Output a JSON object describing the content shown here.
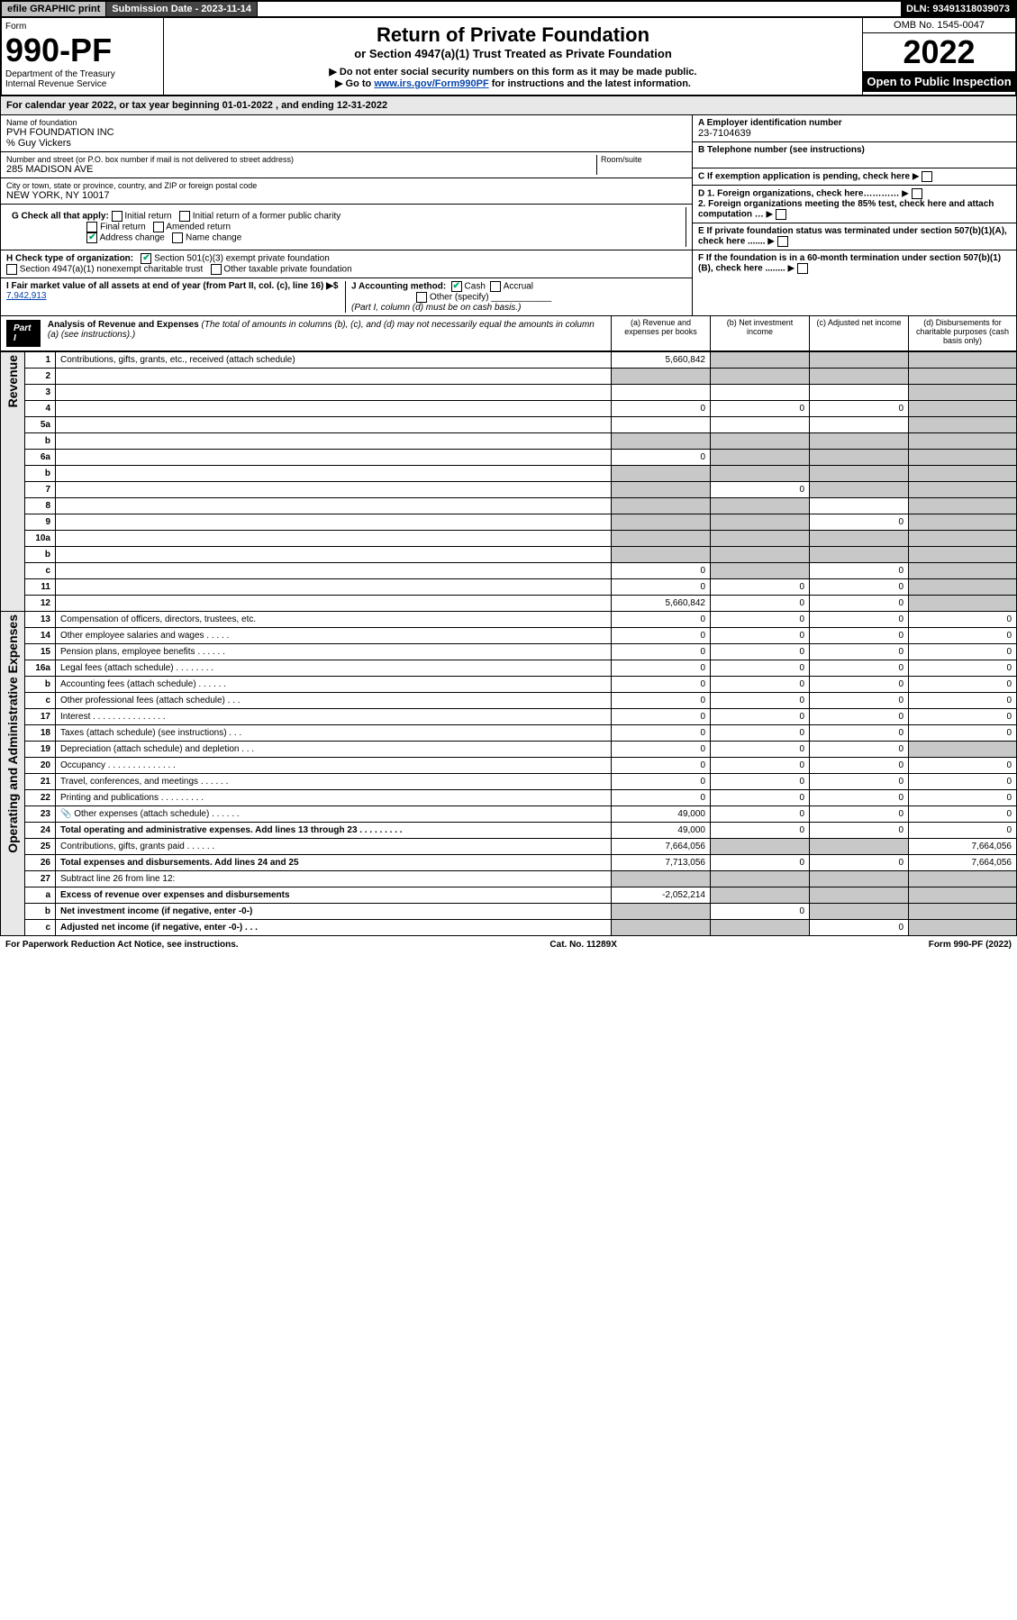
{
  "topbar": {
    "efile": "efile GRAPHIC print",
    "subdate_label": "Submission Date - 2023-11-14",
    "dln": "DLN: 93491318039073"
  },
  "header": {
    "form_label": "Form",
    "form_number": "990-PF",
    "dept": "Department of the Treasury",
    "irs": "Internal Revenue Service",
    "title": "Return of Private Foundation",
    "subtitle": "or Section 4947(a)(1) Trust Treated as Private Foundation",
    "note1": "▶ Do not enter social security numbers on this form as it may be made public.",
    "note2_pre": "▶ Go to ",
    "note2_link": "www.irs.gov/Form990PF",
    "note2_post": " for instructions and the latest information.",
    "omb": "OMB No. 1545-0047",
    "year": "2022",
    "open": "Open to Public Inspection"
  },
  "caldates": {
    "text_pre": "For calendar year 2022, or tax year beginning ",
    "begin": "01-01-2022",
    "text_mid": " , and ending ",
    "end": "12-31-2022"
  },
  "foundation": {
    "name_label": "Name of foundation",
    "name": "PVH FOUNDATION INC",
    "care_of": "% Guy Vickers",
    "addr_label": "Number and street (or P.O. box number if mail is not delivered to street address)",
    "addr": "285 MADISON AVE",
    "room_label": "Room/suite",
    "city_label": "City or town, state or province, country, and ZIP or foreign postal code",
    "city": "NEW YORK, NY  10017",
    "ein_label": "A Employer identification number",
    "ein": "23-7104639",
    "tel_label": "B Telephone number (see instructions)",
    "c_label": "C If exemption application is pending, check here",
    "d1": "D 1. Foreign organizations, check here…………",
    "d2": "2. Foreign organizations meeting the 85% test, check here and attach computation …",
    "e_label": "E If private foundation status was terminated under section 507(b)(1)(A), check here .......",
    "f_label": "F If the foundation is in a 60-month termination under section 507(b)(1)(B), check here ........"
  },
  "g": {
    "label": "G Check all that apply:",
    "initial": "Initial return",
    "initial_former": "Initial return of a former public charity",
    "final": "Final return",
    "amended": "Amended return",
    "address": "Address change",
    "name": "Name change"
  },
  "h": {
    "label": "H Check type of organization:",
    "c3": "Section 501(c)(3) exempt private foundation",
    "trust": "Section 4947(a)(1) nonexempt charitable trust",
    "other": "Other taxable private foundation"
  },
  "i": {
    "label": "I Fair market value of all assets at end of year (from Part II, col. (c), line 16) ▶$",
    "value": "7,942,913"
  },
  "j": {
    "label": "J Accounting method:",
    "cash": "Cash",
    "accrual": "Accrual",
    "other": "Other (specify)",
    "note": "(Part I, column (d) must be on cash basis.)"
  },
  "part1": {
    "tag": "Part I",
    "title": "Analysis of Revenue and Expenses",
    "sub": " (The total of amounts in columns (b), (c), and (d) may not necessarily equal the amounts in column (a) (see instructions).)",
    "col_a": "(a) Revenue and expenses per books",
    "col_b": "(b) Net investment income",
    "col_c": "(c) Adjusted net income",
    "col_d": "(d) Disbursements for charitable purposes (cash basis only)",
    "side_rev": "Revenue",
    "side_exp": "Operating and Administrative Expenses"
  },
  "lines": [
    {
      "n": "1",
      "d": "Contributions, gifts, grants, etc., received (attach schedule)",
      "a": "5,660,842",
      "b": "",
      "c": "",
      "ds": "shade",
      "cs": "shade",
      "bs": "shade"
    },
    {
      "n": "2",
      "d": "",
      "a": "",
      "b": "",
      "c": "",
      "as": "shade",
      "bs": "shade",
      "cs": "shade",
      "ds": "shade"
    },
    {
      "n": "3",
      "d": "",
      "a": "",
      "b": "",
      "c": "",
      "ds": "shade"
    },
    {
      "n": "4",
      "d": "",
      "a": "0",
      "b": "0",
      "c": "0",
      "ds": "shade"
    },
    {
      "n": "5a",
      "d": "",
      "a": "",
      "b": "",
      "c": "",
      "ds": "shade"
    },
    {
      "n": "b",
      "d": "",
      "a": "",
      "b": "",
      "c": "",
      "as": "shade",
      "bs": "shade",
      "cs": "shade",
      "ds": "shade"
    },
    {
      "n": "6a",
      "d": "",
      "a": "0",
      "b": "",
      "c": "",
      "bs": "shade",
      "cs": "shade",
      "ds": "shade"
    },
    {
      "n": "b",
      "d": "",
      "a": "",
      "b": "",
      "c": "",
      "as": "shade",
      "bs": "shade",
      "cs": "shade",
      "ds": "shade"
    },
    {
      "n": "7",
      "d": "",
      "a": "",
      "b": "0",
      "c": "",
      "as": "shade",
      "cs": "shade",
      "ds": "shade"
    },
    {
      "n": "8",
      "d": "",
      "a": "",
      "b": "",
      "c": "",
      "as": "shade",
      "bs": "shade",
      "ds": "shade"
    },
    {
      "n": "9",
      "d": "",
      "a": "",
      "b": "",
      "c": "0",
      "as": "shade",
      "bs": "shade",
      "ds": "shade"
    },
    {
      "n": "10a",
      "d": "",
      "a": "",
      "b": "",
      "c": "",
      "as": "shade",
      "bs": "shade",
      "cs": "shade",
      "ds": "shade"
    },
    {
      "n": "b",
      "d": "",
      "a": "",
      "b": "",
      "c": "",
      "as": "shade",
      "bs": "shade",
      "cs": "shade",
      "ds": "shade"
    },
    {
      "n": "c",
      "d": "",
      "a": "0",
      "b": "",
      "c": "0",
      "bs": "shade",
      "ds": "shade"
    },
    {
      "n": "11",
      "d": "",
      "a": "0",
      "b": "0",
      "c": "0",
      "ds": "shade"
    },
    {
      "n": "12",
      "d": "",
      "a": "5,660,842",
      "b": "0",
      "c": "0",
      "bold": true,
      "ds": "shade"
    },
    {
      "n": "13",
      "d": "Compensation of officers, directors, trustees, etc.",
      "a": "0",
      "b": "0",
      "c": "0",
      "dd": "0"
    },
    {
      "n": "14",
      "d": "Other employee salaries and wages   . . . . .",
      "a": "0",
      "b": "0",
      "c": "0",
      "dd": "0"
    },
    {
      "n": "15",
      "d": "Pension plans, employee benefits   . . . . . .",
      "a": "0",
      "b": "0",
      "c": "0",
      "dd": "0"
    },
    {
      "n": "16a",
      "d": "Legal fees (attach schedule)   . . . . . . . .",
      "a": "0",
      "b": "0",
      "c": "0",
      "dd": "0"
    },
    {
      "n": "b",
      "d": "Accounting fees (attach schedule)   . . . . . .",
      "a": "0",
      "b": "0",
      "c": "0",
      "dd": "0"
    },
    {
      "n": "c",
      "d": "Other professional fees (attach schedule)   . . .",
      "a": "0",
      "b": "0",
      "c": "0",
      "dd": "0"
    },
    {
      "n": "17",
      "d": "Interest   . . . . . . . . . . . . . . .",
      "a": "0",
      "b": "0",
      "c": "0",
      "dd": "0"
    },
    {
      "n": "18",
      "d": "Taxes (attach schedule) (see instructions)   . . .",
      "a": "0",
      "b": "0",
      "c": "0",
      "dd": "0"
    },
    {
      "n": "19",
      "d": "Depreciation (attach schedule) and depletion   . . .",
      "a": "0",
      "b": "0",
      "c": "0",
      "dd": "",
      "ds": "shade"
    },
    {
      "n": "20",
      "d": "Occupancy   . . . . . . . . . . . . . .",
      "a": "0",
      "b": "0",
      "c": "0",
      "dd": "0"
    },
    {
      "n": "21",
      "d": "Travel, conferences, and meetings   . . . . . .",
      "a": "0",
      "b": "0",
      "c": "0",
      "dd": "0"
    },
    {
      "n": "22",
      "d": "Printing and publications   . . . . . . . . .",
      "a": "0",
      "b": "0",
      "c": "0",
      "dd": "0"
    },
    {
      "n": "23",
      "d": "Other expenses (attach schedule)   . . . . . .",
      "a": "49,000",
      "b": "0",
      "c": "0",
      "dd": "0",
      "icon": true
    },
    {
      "n": "24",
      "d": "Total operating and administrative expenses. Add lines 13 through 23   . . . . . . . . .",
      "a": "49,000",
      "b": "0",
      "c": "0",
      "dd": "0",
      "bold": true
    },
    {
      "n": "25",
      "d": "Contributions, gifts, grants paid   . . . . . .",
      "a": "7,664,056",
      "b": "",
      "c": "",
      "dd": "7,664,056",
      "bs": "shade",
      "cs": "shade"
    },
    {
      "n": "26",
      "d": "Total expenses and disbursements. Add lines 24 and 25",
      "a": "7,713,056",
      "b": "0",
      "c": "0",
      "dd": "7,664,056",
      "bold": true
    },
    {
      "n": "27",
      "d": "Subtract line 26 from line 12:",
      "a": "",
      "b": "",
      "c": "",
      "dd": "",
      "as": "shade",
      "bs": "shade",
      "cs": "shade",
      "ds": "shade"
    },
    {
      "n": "a",
      "d": "Excess of revenue over expenses and disbursements",
      "a": "-2,052,214",
      "b": "",
      "c": "",
      "dd": "",
      "bold": true,
      "bs": "shade",
      "cs": "shade",
      "ds": "shade"
    },
    {
      "n": "b",
      "d": "Net investment income (if negative, enter -0-)",
      "a": "",
      "b": "0",
      "c": "",
      "dd": "",
      "bold": true,
      "as": "shade",
      "cs": "shade",
      "ds": "shade"
    },
    {
      "n": "c",
      "d": "Adjusted net income (if negative, enter -0-)   . . .",
      "a": "",
      "b": "",
      "c": "0",
      "dd": "",
      "bold": true,
      "as": "shade",
      "bs": "shade",
      "ds": "shade"
    }
  ],
  "footer": {
    "left": "For Paperwork Reduction Act Notice, see instructions.",
    "mid": "Cat. No. 11289X",
    "right": "Form 990-PF (2022)"
  }
}
